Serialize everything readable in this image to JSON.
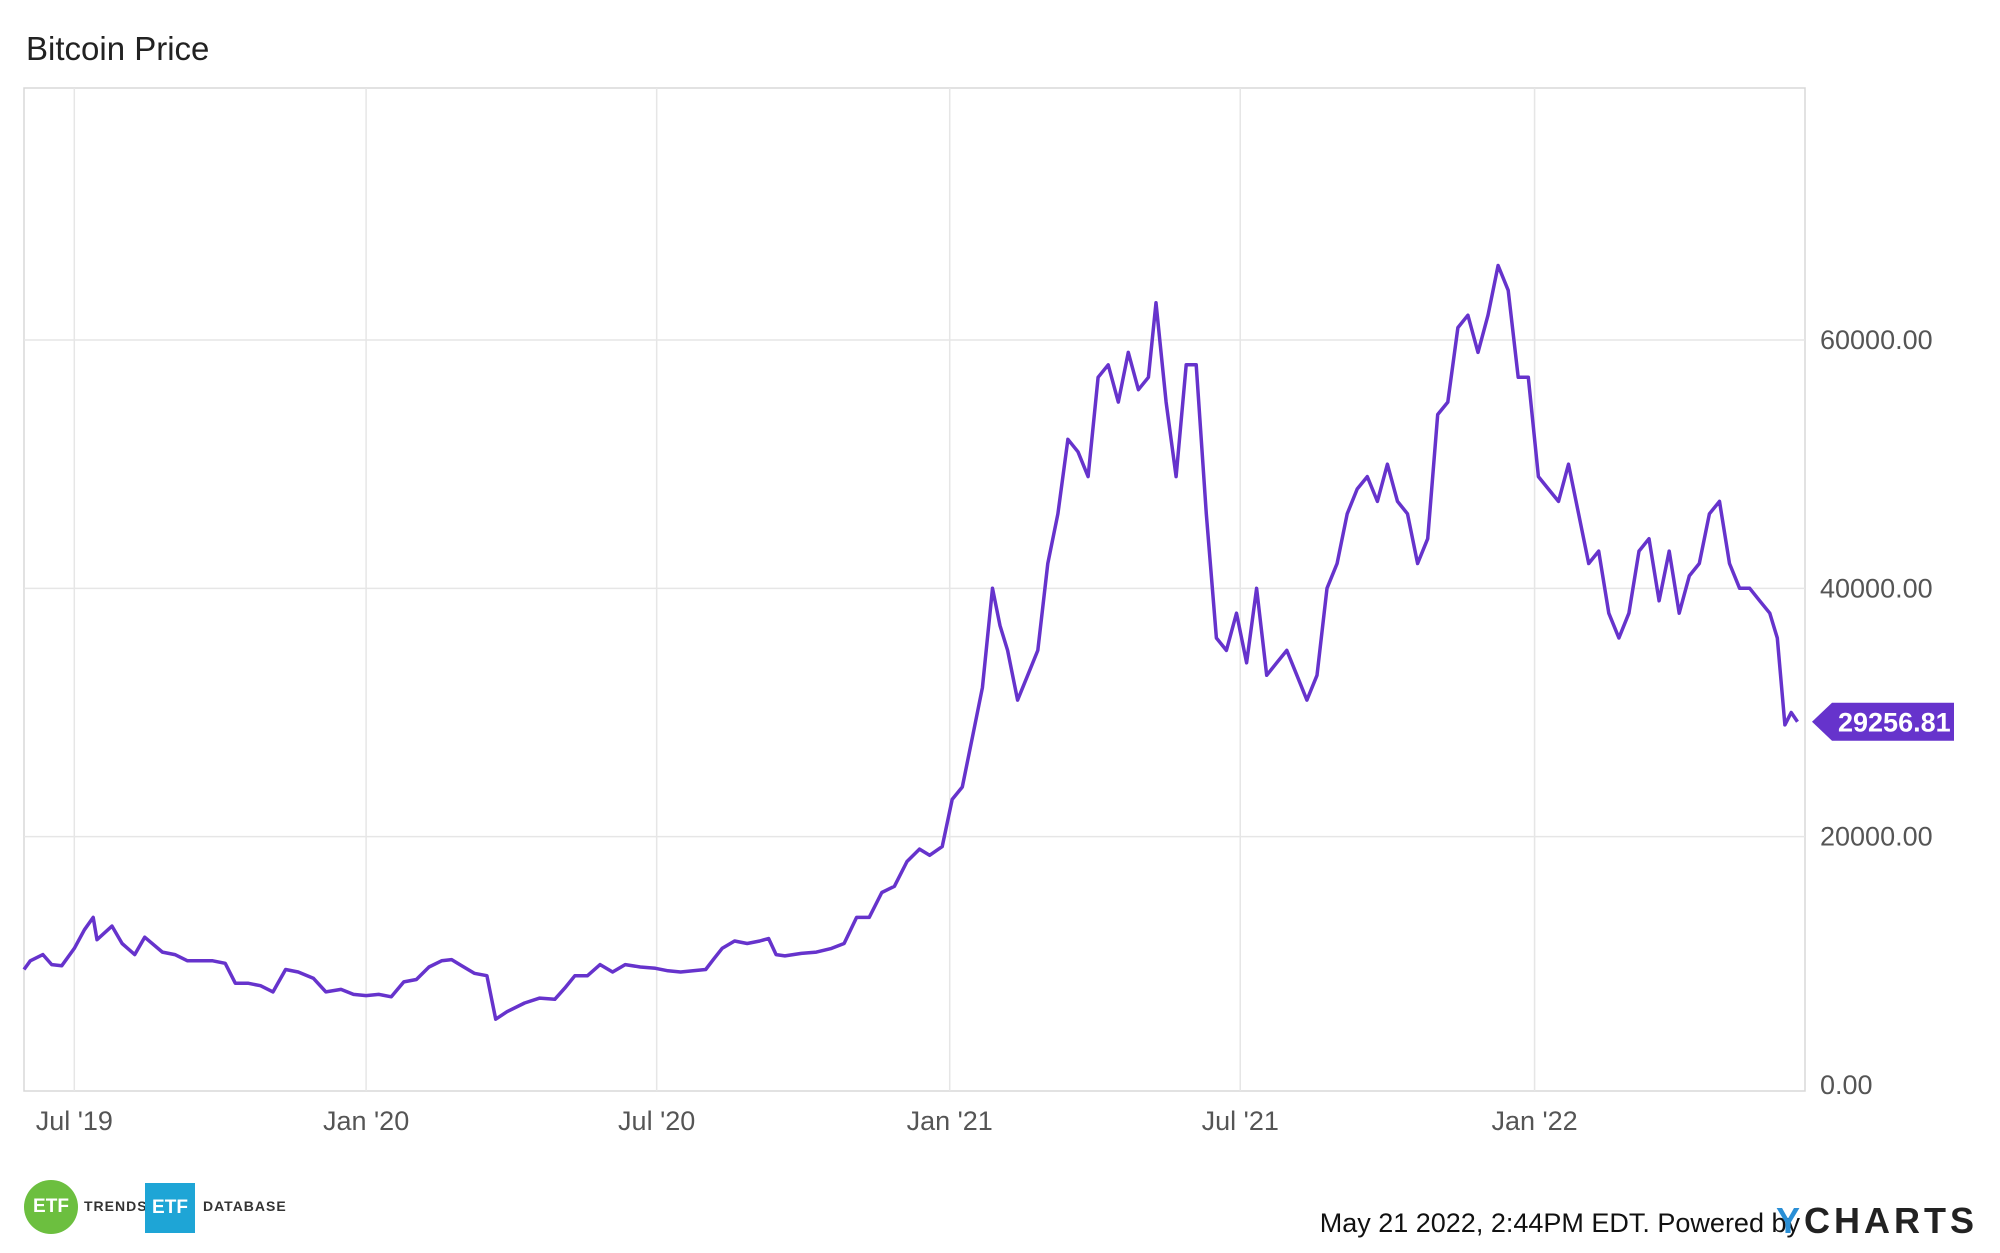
{
  "chart_data": {
    "type": "line",
    "title": "Bitcoin Price",
    "series": [
      {
        "values": [
          [
            0,
            9300
          ],
          [
            5,
            10000
          ],
          [
            15,
            10500
          ],
          [
            22,
            9700
          ],
          [
            30,
            9600
          ],
          [
            40,
            11000
          ],
          [
            48,
            12500
          ],
          [
            55,
            13500
          ],
          [
            58,
            11700
          ],
          [
            70,
            12800
          ],
          [
            78,
            11400
          ],
          [
            88,
            10500
          ],
          [
            96,
            11900
          ],
          [
            110,
            10700
          ],
          [
            120,
            10500
          ],
          [
            130,
            10000
          ],
          [
            140,
            10000
          ],
          [
            150,
            10000
          ],
          [
            160,
            9800
          ],
          [
            168,
            8200
          ],
          [
            178,
            8200
          ],
          [
            188,
            8000
          ],
          [
            198,
            7500
          ],
          [
            208,
            9300
          ],
          [
            218,
            9100
          ],
          [
            230,
            8600
          ],
          [
            240,
            7500
          ],
          [
            252,
            7700
          ],
          [
            262,
            7300
          ],
          [
            272,
            7200
          ],
          [
            282,
            7300
          ],
          [
            292,
            7100
          ],
          [
            302,
            8300
          ],
          [
            312,
            8500
          ],
          [
            322,
            9500
          ],
          [
            332,
            10000
          ],
          [
            340,
            10100
          ],
          [
            348,
            9600
          ],
          [
            358,
            9000
          ],
          [
            368,
            8800
          ],
          [
            375,
            5300
          ],
          [
            384,
            5900
          ],
          [
            398,
            6600
          ],
          [
            410,
            7000
          ],
          [
            422,
            6900
          ],
          [
            430,
            7800
          ],
          [
            438,
            8800
          ],
          [
            448,
            8800
          ],
          [
            458,
            9700
          ],
          [
            468,
            9100
          ],
          [
            478,
            9700
          ],
          [
            490,
            9500
          ],
          [
            502,
            9400
          ],
          [
            512,
            9200
          ],
          [
            522,
            9100
          ],
          [
            532,
            9200
          ],
          [
            542,
            9300
          ],
          [
            548,
            10100
          ],
          [
            555,
            11000
          ],
          [
            565,
            11600
          ],
          [
            575,
            11400
          ],
          [
            585,
            11600
          ],
          [
            592,
            11800
          ],
          [
            598,
            10500
          ],
          [
            605,
            10400
          ],
          [
            618,
            10600
          ],
          [
            630,
            10700
          ],
          [
            642,
            11000
          ],
          [
            652,
            11400
          ],
          [
            662,
            13500
          ],
          [
            672,
            13500
          ],
          [
            682,
            15500
          ],
          [
            692,
            16000
          ],
          [
            702,
            18000
          ],
          [
            712,
            19000
          ],
          [
            720,
            18500
          ],
          [
            730,
            19200
          ],
          [
            738,
            23000
          ],
          [
            746,
            24000
          ],
          [
            754,
            28000
          ],
          [
            762,
            32000
          ],
          [
            770,
            40000
          ],
          [
            776,
            37000
          ],
          [
            782,
            35000
          ],
          [
            790,
            31000
          ],
          [
            798,
            33000
          ],
          [
            806,
            35000
          ],
          [
            814,
            42000
          ],
          [
            822,
            46000
          ],
          [
            830,
            52000
          ],
          [
            838,
            51000
          ],
          [
            846,
            49000
          ],
          [
            854,
            57000
          ],
          [
            862,
            58000
          ],
          [
            870,
            55000
          ],
          [
            878,
            59000
          ],
          [
            886,
            56000
          ],
          [
            894,
            57000
          ],
          [
            900,
            63000
          ],
          [
            908,
            55000
          ],
          [
            916,
            49000
          ],
          [
            924,
            58000
          ],
          [
            932,
            58000
          ],
          [
            940,
            46000
          ],
          [
            948,
            36000
          ],
          [
            956,
            35000
          ],
          [
            964,
            38000
          ],
          [
            972,
            34000
          ],
          [
            980,
            40000
          ],
          [
            988,
            33000
          ],
          [
            996,
            34000
          ],
          [
            1004,
            35000
          ],
          [
            1012,
            33000
          ],
          [
            1020,
            31000
          ],
          [
            1028,
            33000
          ],
          [
            1036,
            40000
          ],
          [
            1044,
            42000
          ],
          [
            1052,
            46000
          ],
          [
            1060,
            48000
          ],
          [
            1068,
            49000
          ],
          [
            1076,
            47000
          ],
          [
            1084,
            50000
          ],
          [
            1092,
            47000
          ],
          [
            1100,
            46000
          ],
          [
            1108,
            42000
          ],
          [
            1116,
            44000
          ],
          [
            1124,
            54000
          ],
          [
            1132,
            55000
          ],
          [
            1140,
            61000
          ],
          [
            1148,
            62000
          ],
          [
            1156,
            59000
          ],
          [
            1164,
            62000
          ],
          [
            1172,
            66000
          ],
          [
            1180,
            64000
          ],
          [
            1188,
            57000
          ],
          [
            1196,
            57000
          ],
          [
            1204,
            49000
          ],
          [
            1212,
            48000
          ],
          [
            1220,
            47000
          ],
          [
            1228,
            50000
          ],
          [
            1236,
            46000
          ],
          [
            1244,
            42000
          ],
          [
            1252,
            43000
          ],
          [
            1260,
            38000
          ],
          [
            1268,
            36000
          ],
          [
            1276,
            38000
          ],
          [
            1284,
            43000
          ],
          [
            1292,
            44000
          ],
          [
            1300,
            39000
          ],
          [
            1308,
            43000
          ],
          [
            1316,
            38000
          ],
          [
            1324,
            41000
          ],
          [
            1332,
            42000
          ],
          [
            1340,
            46000
          ],
          [
            1348,
            47000
          ],
          [
            1356,
            42000
          ],
          [
            1364,
            40000
          ],
          [
            1372,
            40000
          ],
          [
            1380,
            39000
          ],
          [
            1388,
            38000
          ],
          [
            1394,
            36000
          ],
          [
            1400,
            29000
          ],
          [
            1405,
            30000
          ],
          [
            1410,
            29256.81
          ]
        ]
      }
    ],
    "x_ticks": [
      {
        "x": 40,
        "label": "Jul '19"
      },
      {
        "x": 272,
        "label": "Jan '20"
      },
      {
        "x": 503,
        "label": "Jul '20"
      },
      {
        "x": 736,
        "label": "Jan '21"
      },
      {
        "x": 967,
        "label": "Jul '21"
      },
      {
        "x": 1201,
        "label": "Jan '22"
      }
    ],
    "x_range": [
      0,
      1416
    ],
    "y_ticks": [
      "0.00",
      "20000.00",
      "40000.00",
      "60000.00"
    ],
    "y_range": [
      0,
      80000
    ],
    "last_value_label": "29256.81",
    "grid": true,
    "colors": {
      "line": "#6633cc",
      "grid": "#e6e6e6",
      "axis": "#cccccc",
      "badge": "#6633cc"
    }
  },
  "footer": {
    "timestamp": "May 21 2022, 2:44PM EDT.",
    "powered_by": "Powered by",
    "brand_y": "Y",
    "brand_rest": "CHARTS"
  },
  "logos": {
    "etf1": "ETF",
    "trends": "TRENDS",
    "etf2": "ETF",
    "database": "DATABASE"
  }
}
